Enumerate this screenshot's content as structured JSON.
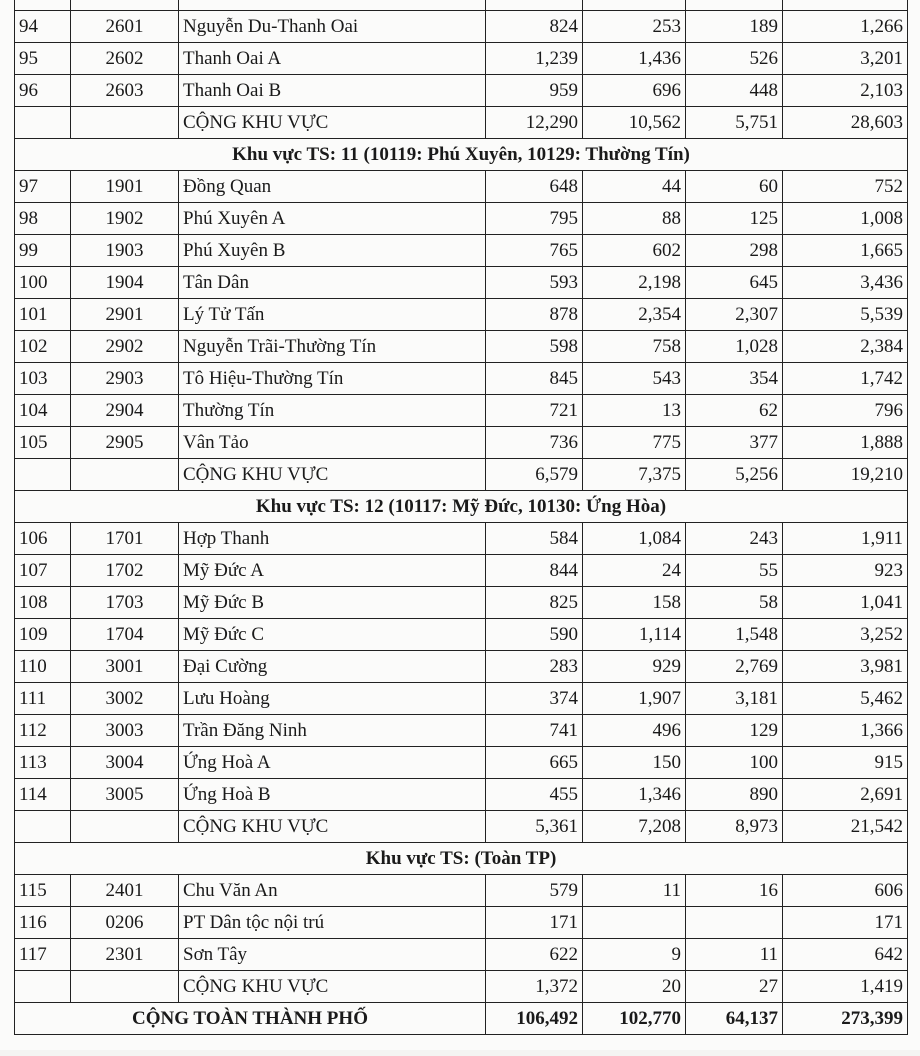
{
  "sections": [
    {
      "header": "",
      "rows": [
        {
          "stt": "94",
          "code": "2601",
          "name": "Nguyễn Du-Thanh Oai",
          "c1": "824",
          "c2": "253",
          "c3": "189",
          "total": "1,266"
        },
        {
          "stt": "95",
          "code": "2602",
          "name": "Thanh Oai A",
          "c1": "1,239",
          "c2": "1,436",
          "c3": "526",
          "total": "3,201"
        },
        {
          "stt": "96",
          "code": "2603",
          "name": "Thanh Oai B",
          "c1": "959",
          "c2": "696",
          "c3": "448",
          "total": "2,103"
        }
      ],
      "subtotal": {
        "label": "CỘNG KHU VỰC",
        "c1": "12,290",
        "c2": "10,562",
        "c3": "5,751",
        "total": "28,603"
      }
    },
    {
      "header": "Khu vực TS: 11 (10119: Phú Xuyên, 10129: Thường Tín)",
      "rows": [
        {
          "stt": "97",
          "code": "1901",
          "name": "Đồng Quan",
          "c1": "648",
          "c2": "44",
          "c3": "60",
          "total": "752"
        },
        {
          "stt": "98",
          "code": "1902",
          "name": "Phú Xuyên A",
          "c1": "795",
          "c2": "88",
          "c3": "125",
          "total": "1,008"
        },
        {
          "stt": "99",
          "code": "1903",
          "name": "Phú Xuyên B",
          "c1": "765",
          "c2": "602",
          "c3": "298",
          "total": "1,665"
        },
        {
          "stt": "100",
          "code": "1904",
          "name": "Tân Dân",
          "c1": "593",
          "c2": "2,198",
          "c3": "645",
          "total": "3,436"
        },
        {
          "stt": "101",
          "code": "2901",
          "name": "Lý Tử Tấn",
          "c1": "878",
          "c2": "2,354",
          "c3": "2,307",
          "total": "5,539"
        },
        {
          "stt": "102",
          "code": "2902",
          "name": "Nguyễn Trãi-Thường Tín",
          "c1": "598",
          "c2": "758",
          "c3": "1,028",
          "total": "2,384"
        },
        {
          "stt": "103",
          "code": "2903",
          "name": "Tô Hiệu-Thường Tín",
          "c1": "845",
          "c2": "543",
          "c3": "354",
          "total": "1,742"
        },
        {
          "stt": "104",
          "code": "2904",
          "name": "Thường Tín",
          "c1": "721",
          "c2": "13",
          "c3": "62",
          "total": "796"
        },
        {
          "stt": "105",
          "code": "2905",
          "name": "Vân Tảo",
          "c1": "736",
          "c2": "775",
          "c3": "377",
          "total": "1,888"
        }
      ],
      "subtotal": {
        "label": "CỘNG KHU VỰC",
        "c1": "6,579",
        "c2": "7,375",
        "c3": "5,256",
        "total": "19,210"
      }
    },
    {
      "header": "Khu vực TS: 12 (10117: Mỹ Đức, 10130: Ứng Hòa)",
      "rows": [
        {
          "stt": "106",
          "code": "1701",
          "name": "Hợp Thanh",
          "c1": "584",
          "c2": "1,084",
          "c3": "243",
          "total": "1,911"
        },
        {
          "stt": "107",
          "code": "1702",
          "name": "Mỹ Đức A",
          "c1": "844",
          "c2": "24",
          "c3": "55",
          "total": "923"
        },
        {
          "stt": "108",
          "code": "1703",
          "name": "Mỹ Đức B",
          "c1": "825",
          "c2": "158",
          "c3": "58",
          "total": "1,041"
        },
        {
          "stt": "109",
          "code": "1704",
          "name": "Mỹ Đức C",
          "c1": "590",
          "c2": "1,114",
          "c3": "1,548",
          "total": "3,252"
        },
        {
          "stt": "110",
          "code": "3001",
          "name": "Đại Cường",
          "c1": "283",
          "c2": "929",
          "c3": "2,769",
          "total": "3,981"
        },
        {
          "stt": "111",
          "code": "3002",
          "name": "Lưu Hoàng",
          "c1": "374",
          "c2": "1,907",
          "c3": "3,181",
          "total": "5,462"
        },
        {
          "stt": "112",
          "code": "3003",
          "name": "Trần Đăng Ninh",
          "c1": "741",
          "c2": "496",
          "c3": "129",
          "total": "1,366"
        },
        {
          "stt": "113",
          "code": "3004",
          "name": "Ứng Hoà A",
          "c1": "665",
          "c2": "150",
          "c3": "100",
          "total": "915"
        },
        {
          "stt": "114",
          "code": "3005",
          "name": "Ứng Hoà B",
          "c1": "455",
          "c2": "1,346",
          "c3": "890",
          "total": "2,691"
        }
      ],
      "subtotal": {
        "label": "CỘNG KHU VỰC",
        "c1": "5,361",
        "c2": "7,208",
        "c3": "8,973",
        "total": "21,542"
      }
    },
    {
      "header": "Khu vực TS: (Toàn TP)",
      "rows": [
        {
          "stt": "115",
          "code": "2401",
          "name": "Chu Văn An",
          "c1": "579",
          "c2": "11",
          "c3": "16",
          "total": "606"
        },
        {
          "stt": "116",
          "code": "0206",
          "name": "PT Dân tộc nội trú",
          "c1": "171",
          "c2": "",
          "c3": "",
          "total": "171"
        },
        {
          "stt": "117",
          "code": "2301",
          "name": "Sơn Tây",
          "c1": "622",
          "c2": "9",
          "c3": "11",
          "total": "642"
        }
      ],
      "subtotal": {
        "label": "CỘNG KHU VỰC",
        "c1": "1,372",
        "c2": "20",
        "c3": "27",
        "total": "1,419"
      }
    }
  ],
  "grand_total": {
    "label": "CỘNG TOÀN THÀNH PHỐ",
    "c1": "106,492",
    "c2": "102,770",
    "c3": "64,137",
    "total": "273,399"
  }
}
